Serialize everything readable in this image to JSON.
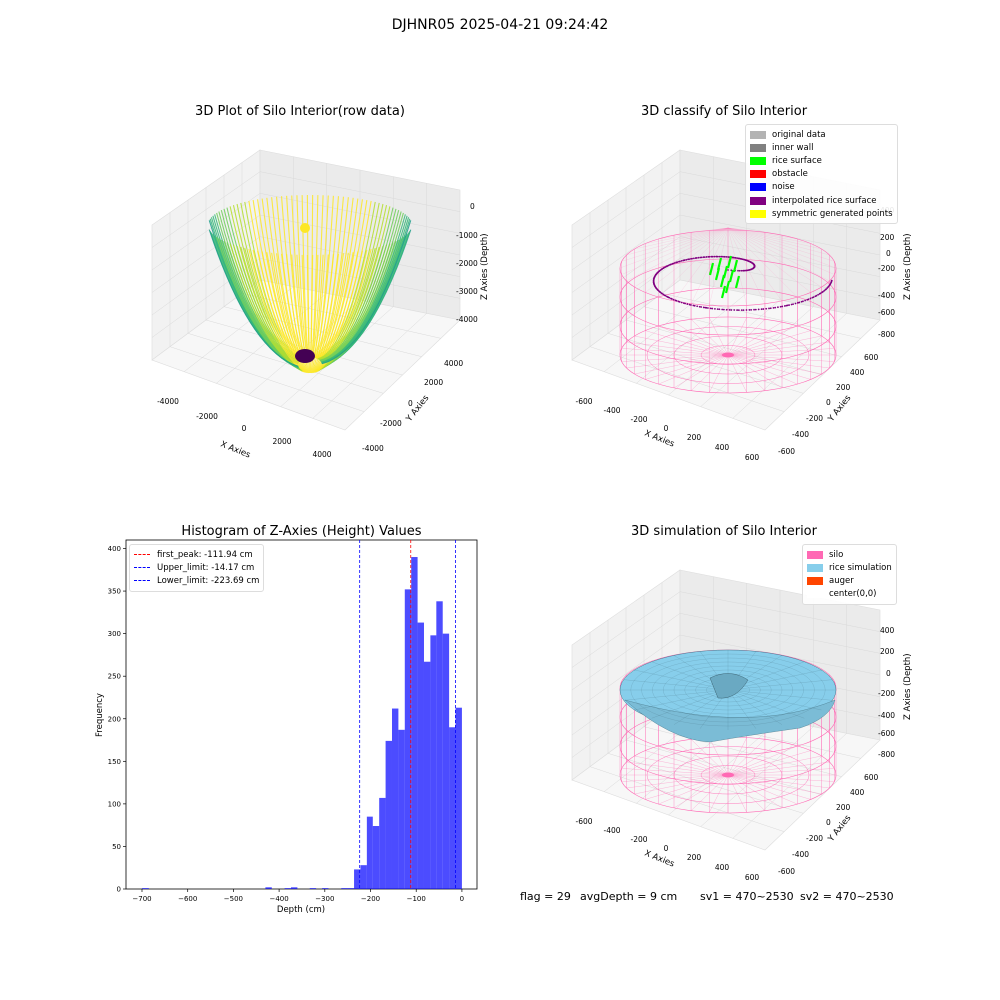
{
  "suptitle": "DJHNR05 2025-04-21 09:24:42",
  "panels": {
    "raw": {
      "title": "3D Plot of Silo Interior(row data)",
      "xlabel": "X Axies",
      "ylabel": "Y Axies",
      "zlabel": "Z Axies (Depth)",
      "xticks": [
        "-4000",
        "-2000",
        "0",
        "2000",
        "4000"
      ],
      "yticks": [
        "-4000",
        "-2000",
        "0",
        "2000",
        "4000"
      ],
      "zticks": [
        "0",
        "-1000",
        "-2000",
        "-3000",
        "-4000"
      ]
    },
    "classify": {
      "title": "3D classify of Silo Interior",
      "xlabel": "X Axies",
      "ylabel": "Y Axies",
      "zlabel": "Z Axies (Depth)",
      "xticks": [
        "-600",
        "-400",
        "-200",
        "0",
        "200",
        "400",
        "600"
      ],
      "yticks": [
        "-600",
        "-400",
        "-200",
        "0",
        "200",
        "400",
        "600"
      ],
      "zticks": [
        "400",
        "200",
        "0",
        "-200",
        "-400",
        "-600",
        "-800"
      ],
      "legend": [
        {
          "label": "original data",
          "color": "#b3b3b3"
        },
        {
          "label": "inner wall",
          "color": "#808080"
        },
        {
          "label": "rice surface",
          "color": "#00ff00"
        },
        {
          "label": "obstacle",
          "color": "#ff0000"
        },
        {
          "label": "noise",
          "color": "#0000ff"
        },
        {
          "label": "interpolated rice surface",
          "color": "#800080"
        },
        {
          "label": "symmetric generated points",
          "color": "#ffff00"
        }
      ]
    },
    "simulation": {
      "title": "3D simulation of Silo Interior",
      "xlabel": "X Axies",
      "ylabel": "Y Axies",
      "zlabel": "Z Axies (Depth)",
      "xticks": [
        "-600",
        "-400",
        "-200",
        "0",
        "200",
        "400",
        "600"
      ],
      "yticks": [
        "-600",
        "-400",
        "-200",
        "0",
        "200",
        "400",
        "600"
      ],
      "zticks": [
        "400",
        "200",
        "0",
        "-200",
        "-400",
        "-600",
        "-800"
      ],
      "legend": [
        {
          "label": "silo",
          "color": "#ff69b4"
        },
        {
          "label": "rice simulation",
          "color": "#87ceeb"
        },
        {
          "label": "auger",
          "color": "#ff4500"
        },
        {
          "label": "center(0,0)",
          "color": "#ffffff"
        }
      ]
    }
  },
  "status": {
    "flag": "flag = 29",
    "avg_depth": "avgDepth = 9 cm",
    "sv1": "sv1 = 470~2530",
    "sv2": "sv2 = 470~2530"
  },
  "chart_data": {
    "type": "bar",
    "title": "Histogram of Z-Axies (Height) Values",
    "xlabel": "Depth (cm)",
    "ylabel": "Frequency",
    "xlim": [
      -735,
      33
    ],
    "ylim": [
      0,
      410
    ],
    "xticks": [
      -700,
      -600,
      -500,
      -400,
      -300,
      -200,
      -100,
      0
    ],
    "yticks": [
      0,
      50,
      100,
      150,
      200,
      250,
      300,
      350,
      400
    ],
    "bar_color": "#0000ff",
    "bins": [
      {
        "x0": -700,
        "x1": -685,
        "count": 1
      },
      {
        "x0": -430,
        "x1": -416,
        "count": 2
      },
      {
        "x0": -388,
        "x1": -374,
        "count": 1
      },
      {
        "x0": -374,
        "x1": -360,
        "count": 2
      },
      {
        "x0": -333,
        "x1": -319,
        "count": 1
      },
      {
        "x0": -306,
        "x1": -292,
        "count": 1
      },
      {
        "x0": -264,
        "x1": -250,
        "count": 1
      },
      {
        "x0": -250,
        "x1": -236,
        "count": 1
      },
      {
        "x0": -236,
        "x1": -222,
        "count": 23
      },
      {
        "x0": -222,
        "x1": -208,
        "count": 28
      },
      {
        "x0": -208,
        "x1": -195,
        "count": 85
      },
      {
        "x0": -195,
        "x1": -181,
        "count": 74
      },
      {
        "x0": -181,
        "x1": -167,
        "count": 107
      },
      {
        "x0": -167,
        "x1": -153,
        "count": 174
      },
      {
        "x0": -153,
        "x1": -139,
        "count": 212
      },
      {
        "x0": -139,
        "x1": -125,
        "count": 187
      },
      {
        "x0": -125,
        "x1": -111,
        "count": 352
      },
      {
        "x0": -111,
        "x1": -97,
        "count": 390
      },
      {
        "x0": -97,
        "x1": -83,
        "count": 313
      },
      {
        "x0": -83,
        "x1": -69,
        "count": 267
      },
      {
        "x0": -69,
        "x1": -56,
        "count": 298
      },
      {
        "x0": -56,
        "x1": -42,
        "count": 338
      },
      {
        "x0": -42,
        "x1": -28,
        "count": 300
      },
      {
        "x0": -28,
        "x1": -14,
        "count": 190
      },
      {
        "x0": -14,
        "x1": 0,
        "count": 213
      }
    ],
    "vlines": [
      {
        "label": "first_peak: -111.94 cm",
        "x": -111.94,
        "color": "#ff0000"
      },
      {
        "label": "Upper_limit: -14.17 cm",
        "x": -14.17,
        "color": "#0000ff"
      },
      {
        "label": "Lower_limit: -223.69 cm",
        "x": -223.69,
        "color": "#0000ff"
      }
    ]
  }
}
